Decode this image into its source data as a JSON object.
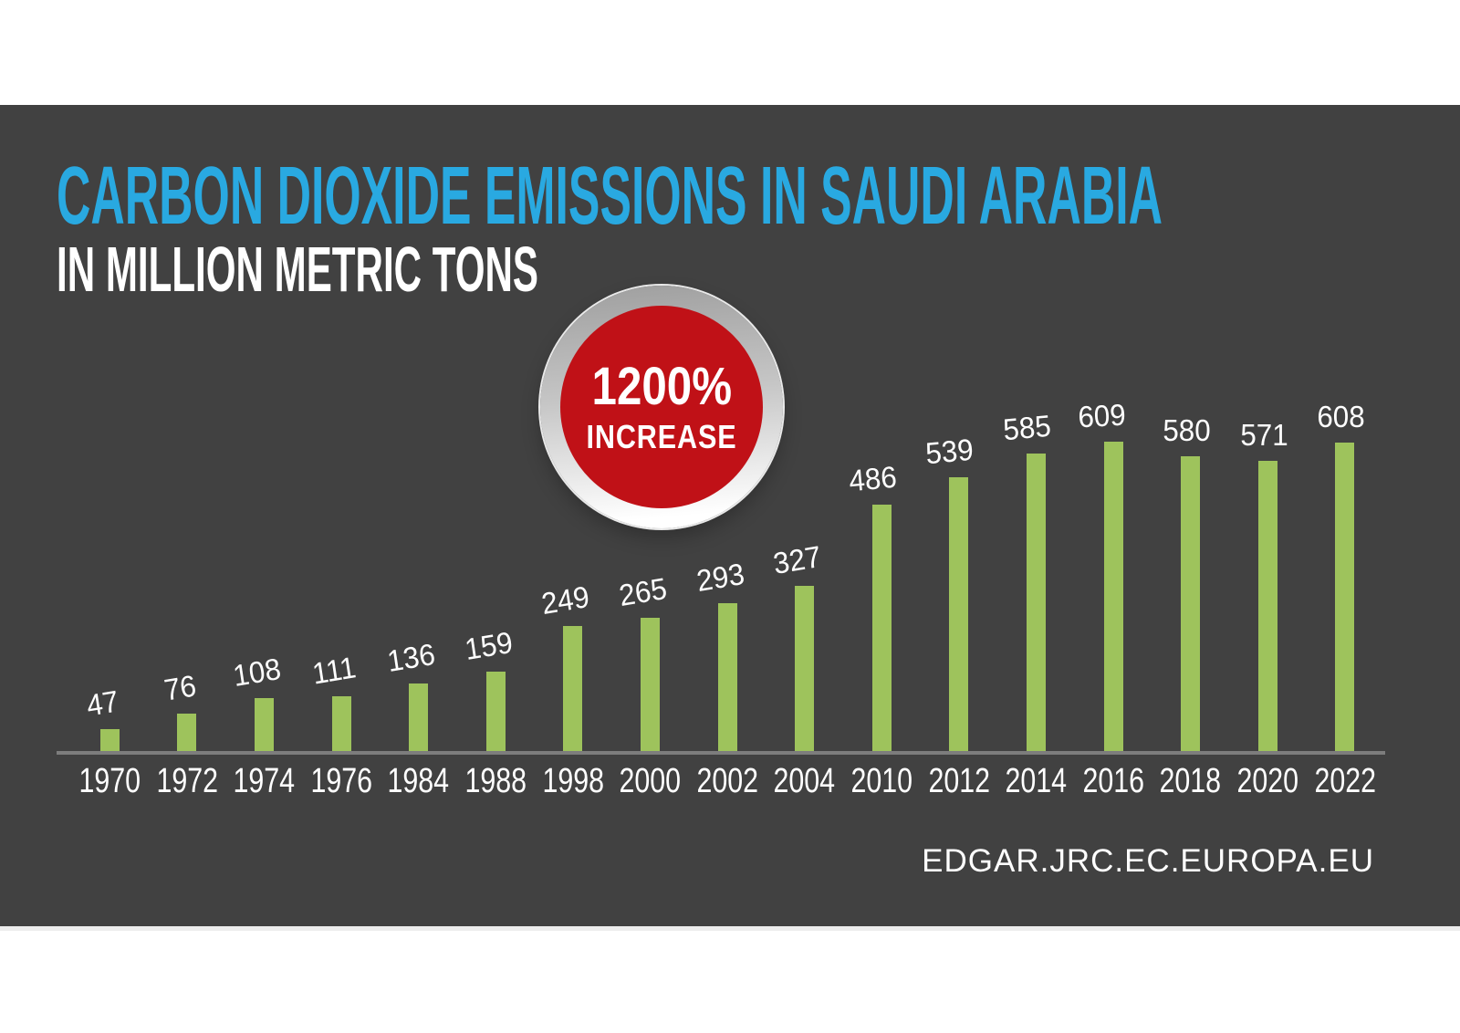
{
  "header": {
    "title": "CARBON DIOXIDE EMISSIONS IN SAUDI ARABIA",
    "subtitle": "IN MILLION METRIC TONS"
  },
  "badge": {
    "line1": "1200%",
    "line2": "INCREASE"
  },
  "footer": {
    "source": "EDGAR.JRC.EC.EUROPA.EU"
  },
  "colors": {
    "panel_background": "#414141",
    "title_blue": "#29A9E1",
    "bar_green": "#9EC35C",
    "badge_red": "#C01117",
    "badge_ring_silver": "#C6C6C6",
    "axis_gray": "#7D7D7D",
    "text_white": "#FFFFFF"
  },
  "chart_data": {
    "type": "bar",
    "title": "CARBON DIOXIDE EMISSIONS IN SAUDI ARABIA",
    "xlabel": "",
    "ylabel": "Million metric tons",
    "categories": [
      "1970",
      "1972",
      "1974",
      "1976",
      "1984",
      "1988",
      "1998",
      "2000",
      "2002",
      "2004",
      "2010",
      "2012",
      "2014",
      "2016",
      "2018",
      "2020",
      "2022"
    ],
    "values": [
      47,
      76,
      108,
      111,
      136,
      159,
      249,
      265,
      293,
      327,
      486,
      539,
      585,
      609,
      580,
      571,
      608
    ],
    "ylim": [
      0,
      650
    ],
    "grid": false,
    "legend": false,
    "bar_color": "#9EC35C",
    "value_labels": true,
    "annotation": "1200% INCREASE"
  }
}
